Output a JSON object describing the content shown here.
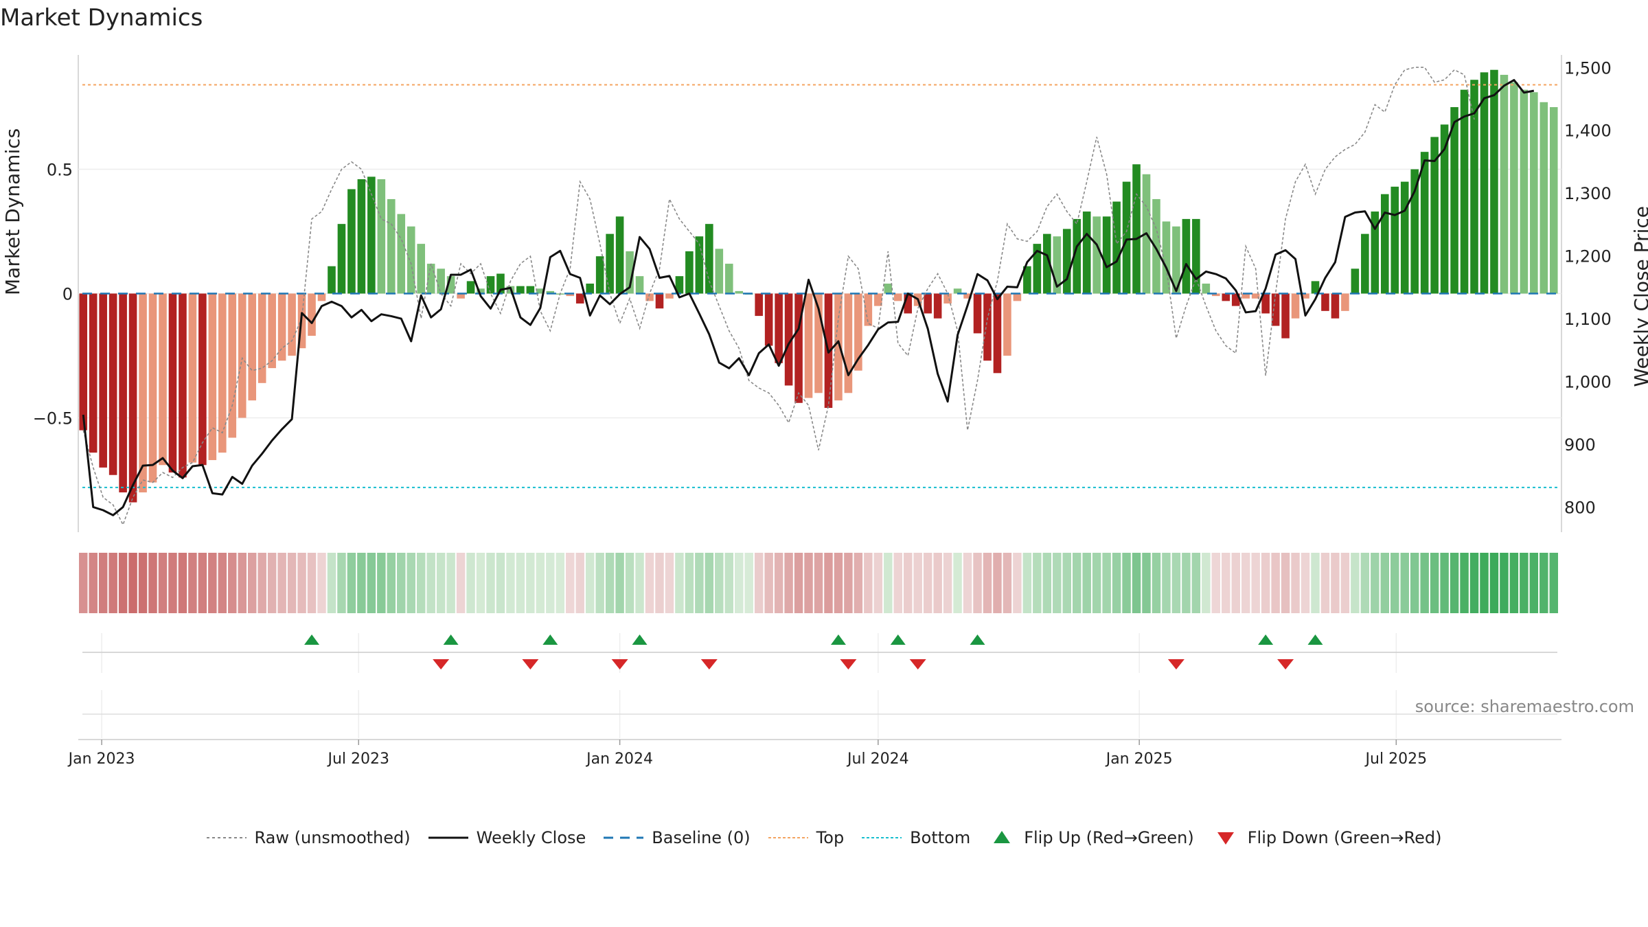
{
  "title": "Market Dynamics",
  "source": "source: sharemaestro.com",
  "colors": {
    "strong_green": "#238b22",
    "light_green": "#7fc07b",
    "strong_red": "#b22222",
    "light_red": "#e9967a",
    "raw": "#888888",
    "close": "#111111",
    "baseline": "#1f77b4",
    "top": "#f4a460",
    "bottom": "#17becf",
    "flip_up": "#1a9641",
    "flip_down": "#d62728"
  },
  "legend": [
    {
      "key": "raw",
      "label": "Raw (unsmoothed)",
      "style": "dotted-gray"
    },
    {
      "key": "close",
      "label": "Weekly Close",
      "style": "solid-black"
    },
    {
      "key": "baseline",
      "label": "Baseline (0)",
      "style": "dashed-blue"
    },
    {
      "key": "top",
      "label": "Top",
      "style": "dotted-orange"
    },
    {
      "key": "bottom",
      "label": "Bottom",
      "style": "dotted-cyan"
    },
    {
      "key": "flip_up",
      "label": "Flip Up (Red→Green)",
      "style": "triangle-up-green"
    },
    {
      "key": "flip_down",
      "label": "Flip Down (Green→Red)",
      "style": "triangle-down-red"
    }
  ],
  "chart_data": {
    "type": "bar",
    "title": "Market Dynamics",
    "ylabel": "Market Dynamics",
    "y2label": "Weekly Close Price",
    "x_start": "2022-12-19",
    "week_step_days": 7,
    "ylim": [
      -0.96,
      0.96
    ],
    "y2lim": [
      760,
      1520
    ],
    "yticks": [
      -0.5,
      0,
      0.5
    ],
    "ytick_labels": [
      "−0.5",
      "0",
      "0.5"
    ],
    "y2ticks": [
      800,
      900,
      1000,
      1100,
      1200,
      1300,
      1400,
      1500
    ],
    "y2tick_labels": [
      "800",
      "900",
      "1,000",
      "1,100",
      "1,200",
      "1,300",
      "1,400",
      "1,500"
    ],
    "xticks": [
      "2023-01-01",
      "2023-07-01",
      "2024-01-01",
      "2024-07-01",
      "2025-01-01",
      "2025-07-01"
    ],
    "xtick_labels": [
      "Jan 2023",
      "Jul 2023",
      "Jan 2024",
      "Jul 2024",
      "Jan 2025",
      "Jul 2025"
    ],
    "top_line": 0.84,
    "bottom_line": -0.78,
    "baseline": 0,
    "grid": true,
    "legend_position": "bottom-center",
    "md_values": [
      -0.55,
      -0.64,
      -0.7,
      -0.73,
      -0.8,
      -0.84,
      -0.8,
      -0.76,
      -0.69,
      -0.72,
      -0.74,
      -0.68,
      -0.69,
      -0.67,
      -0.64,
      -0.58,
      -0.5,
      -0.43,
      -0.36,
      -0.3,
      -0.27,
      -0.25,
      -0.22,
      -0.17,
      -0.03,
      0.11,
      0.28,
      0.42,
      0.46,
      0.47,
      0.46,
      0.38,
      0.32,
      0.27,
      0.2,
      0.12,
      0.1,
      0.07,
      -0.02,
      0.05,
      0.02,
      0.07,
      0.08,
      0.03,
      0.03,
      0.03,
      0.02,
      0.01,
      0.0,
      -0.01,
      -0.04,
      0.04,
      0.15,
      0.24,
      0.31,
      0.17,
      0.07,
      -0.03,
      -0.06,
      -0.02,
      0.07,
      0.17,
      0.23,
      0.28,
      0.18,
      0.12,
      0.01,
      0.0,
      -0.09,
      -0.21,
      -0.28,
      -0.37,
      -0.44,
      -0.42,
      -0.4,
      -0.46,
      -0.43,
      -0.4,
      -0.31,
      -0.13,
      -0.05,
      0.04,
      -0.03,
      -0.08,
      -0.05,
      -0.08,
      -0.1,
      -0.04,
      0.02,
      -0.02,
      -0.16,
      -0.27,
      -0.32,
      -0.25,
      -0.03,
      0.11,
      0.2,
      0.24,
      0.23,
      0.26,
      0.3,
      0.33,
      0.31,
      0.31,
      0.37,
      0.45,
      0.52,
      0.48,
      0.38,
      0.29,
      0.27,
      0.3,
      0.3,
      0.04,
      -0.01,
      -0.03,
      -0.05,
      -0.02,
      -0.02,
      -0.08,
      -0.13,
      -0.18,
      -0.1,
      -0.02,
      0.05,
      -0.07,
      -0.1,
      -0.07,
      0.1,
      0.24,
      0.33,
      0.4,
      0.43,
      0.45,
      0.5,
      0.57,
      0.63,
      0.68,
      0.75,
      0.82,
      0.86,
      0.89,
      0.9,
      0.88,
      0.85,
      0.82,
      0.81,
      0.77,
      0.75
    ],
    "raw_values": [
      -0.55,
      -0.7,
      -0.82,
      -0.85,
      -0.93,
      -0.82,
      -0.75,
      -0.76,
      -0.72,
      -0.74,
      -0.7,
      -0.68,
      -0.6,
      -0.54,
      -0.56,
      -0.45,
      -0.26,
      -0.31,
      -0.3,
      -0.27,
      -0.22,
      -0.19,
      -0.1,
      0.3,
      0.33,
      0.42,
      0.5,
      0.53,
      0.5,
      0.4,
      0.3,
      0.28,
      0.22,
      0.12,
      -0.1,
      0.12,
      0.0,
      -0.05,
      0.12,
      0.08,
      0.12,
      0.0,
      -0.08,
      0.05,
      0.12,
      0.15,
      -0.07,
      -0.15,
      0.0,
      0.1,
      0.45,
      0.38,
      0.2,
      0.0,
      -0.12,
      -0.02,
      -0.14,
      0.0,
      0.1,
      0.38,
      0.3,
      0.25,
      0.2,
      0.05,
      -0.05,
      -0.15,
      -0.22,
      -0.35,
      -0.38,
      -0.4,
      -0.45,
      -0.52,
      -0.4,
      -0.45,
      -0.63,
      -0.45,
      -0.1,
      0.15,
      0.1,
      -0.12,
      -0.14,
      0.17,
      -0.2,
      -0.25,
      -0.06,
      0.02,
      0.08,
      0.0,
      -0.15,
      -0.55,
      -0.35,
      -0.1,
      0.05,
      0.28,
      0.22,
      0.21,
      0.25,
      0.35,
      0.4,
      0.33,
      0.28,
      0.45,
      0.63,
      0.48,
      0.2,
      0.25,
      0.4,
      0.35,
      0.26,
      0.1,
      -0.18,
      -0.05,
      0.06,
      -0.05,
      -0.15,
      -0.21,
      -0.24,
      0.19,
      0.1,
      -0.33,
      0.0,
      0.3,
      0.45,
      0.52,
      0.4,
      0.5,
      0.55,
      0.58,
      0.6,
      0.65,
      0.76,
      0.73,
      0.84,
      0.9,
      0.91,
      0.91,
      0.85,
      0.86,
      0.9,
      0.88,
      0.7
    ],
    "weekly_close": [
      947,
      800,
      795,
      787,
      800,
      835,
      866,
      867,
      878,
      858,
      846,
      865,
      867,
      822,
      820,
      848,
      837,
      866,
      885,
      906,
      924,
      940,
      1109,
      1093,
      1120,
      1127,
      1120,
      1102,
      1114,
      1096,
      1107,
      1104,
      1100,
      1064,
      1137,
      1102,
      1115,
      1170,
      1170,
      1178,
      1136,
      1116,
      1146,
      1149,
      1102,
      1090,
      1117,
      1198,
      1208,
      1171,
      1165,
      1105,
      1137,
      1123,
      1139,
      1150,
      1230,
      1211,
      1165,
      1168,
      1134,
      1140,
      1108,
      1075,
      1030,
      1021,
      1037,
      1010,
      1045,
      1059,
      1025,
      1060,
      1084,
      1162,
      1116,
      1046,
      1064,
      1010,
      1036,
      1058,
      1083,
      1094,
      1095,
      1140,
      1131,
      1084,
      1012,
      968,
      1074,
      1121,
      1171,
      1161,
      1131,
      1151,
      1150,
      1190,
      1208,
      1201,
      1151,
      1163,
      1215,
      1235,
      1218,
      1182,
      1191,
      1226,
      1227,
      1236,
      1211,
      1181,
      1144,
      1187,
      1163,
      1175,
      1171,
      1164,
      1145,
      1110,
      1112,
      1148,
      1202,
      1209,
      1195,
      1105,
      1131,
      1165,
      1190,
      1262,
      1269,
      1271,
      1243,
      1269,
      1265,
      1272,
      1303,
      1352,
      1351,
      1370,
      1413,
      1422,
      1427,
      1451,
      1456,
      1471,
      1480,
      1460,
      1463
    ],
    "flip_up_weeks": [
      23,
      37,
      47,
      56,
      76,
      82,
      90,
      119,
      124
    ],
    "flip_down_weeks": [
      36,
      45,
      54,
      63,
      77,
      84,
      110,
      121
    ]
  }
}
